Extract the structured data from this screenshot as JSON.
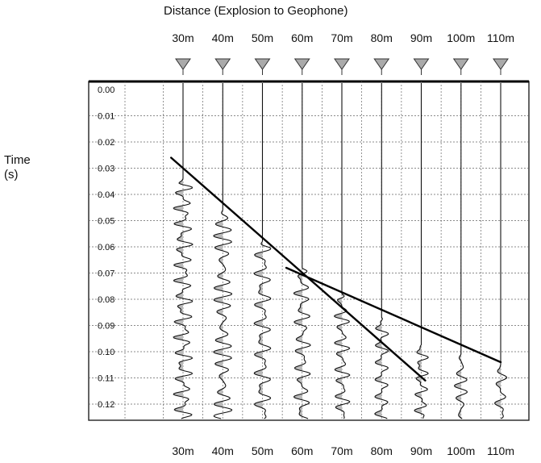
{
  "chart_data": {
    "type": "seismic-trace-plot",
    "title": "Distance (Explosion to Geophone)",
    "ylabel_line1": "Time",
    "ylabel_line2": "(s)",
    "distance_labels": [
      "30m",
      "40m",
      "50m",
      "60m",
      "70m",
      "80m",
      "90m",
      "100m",
      "110m"
    ],
    "distances_m": [
      30,
      40,
      50,
      60,
      70,
      80,
      90,
      100,
      110
    ],
    "time_labels": [
      "0.00",
      "0.01",
      "0.02",
      "0.03",
      "0.04",
      "0.05",
      "0.06",
      "0.07",
      "0.08",
      "0.09",
      "0.10",
      "0.11",
      "0.12"
    ],
    "time_range_s": [
      0.0,
      0.13
    ],
    "distance_range_m": [
      21.5,
      114
    ],
    "first_arrivals_s": [
      0.034,
      0.046,
      0.058,
      0.068,
      0.078,
      0.087,
      0.097,
      0.101,
      0.105
    ],
    "fit_lines": [
      {
        "from": [
          27,
          0.026
        ],
        "to": [
          91,
          0.111
        ]
      },
      {
        "from": [
          56,
          0.068
        ],
        "to": [
          110,
          0.104
        ]
      }
    ],
    "grid": true,
    "symbol_icon": "geophone-triangle-icon"
  }
}
